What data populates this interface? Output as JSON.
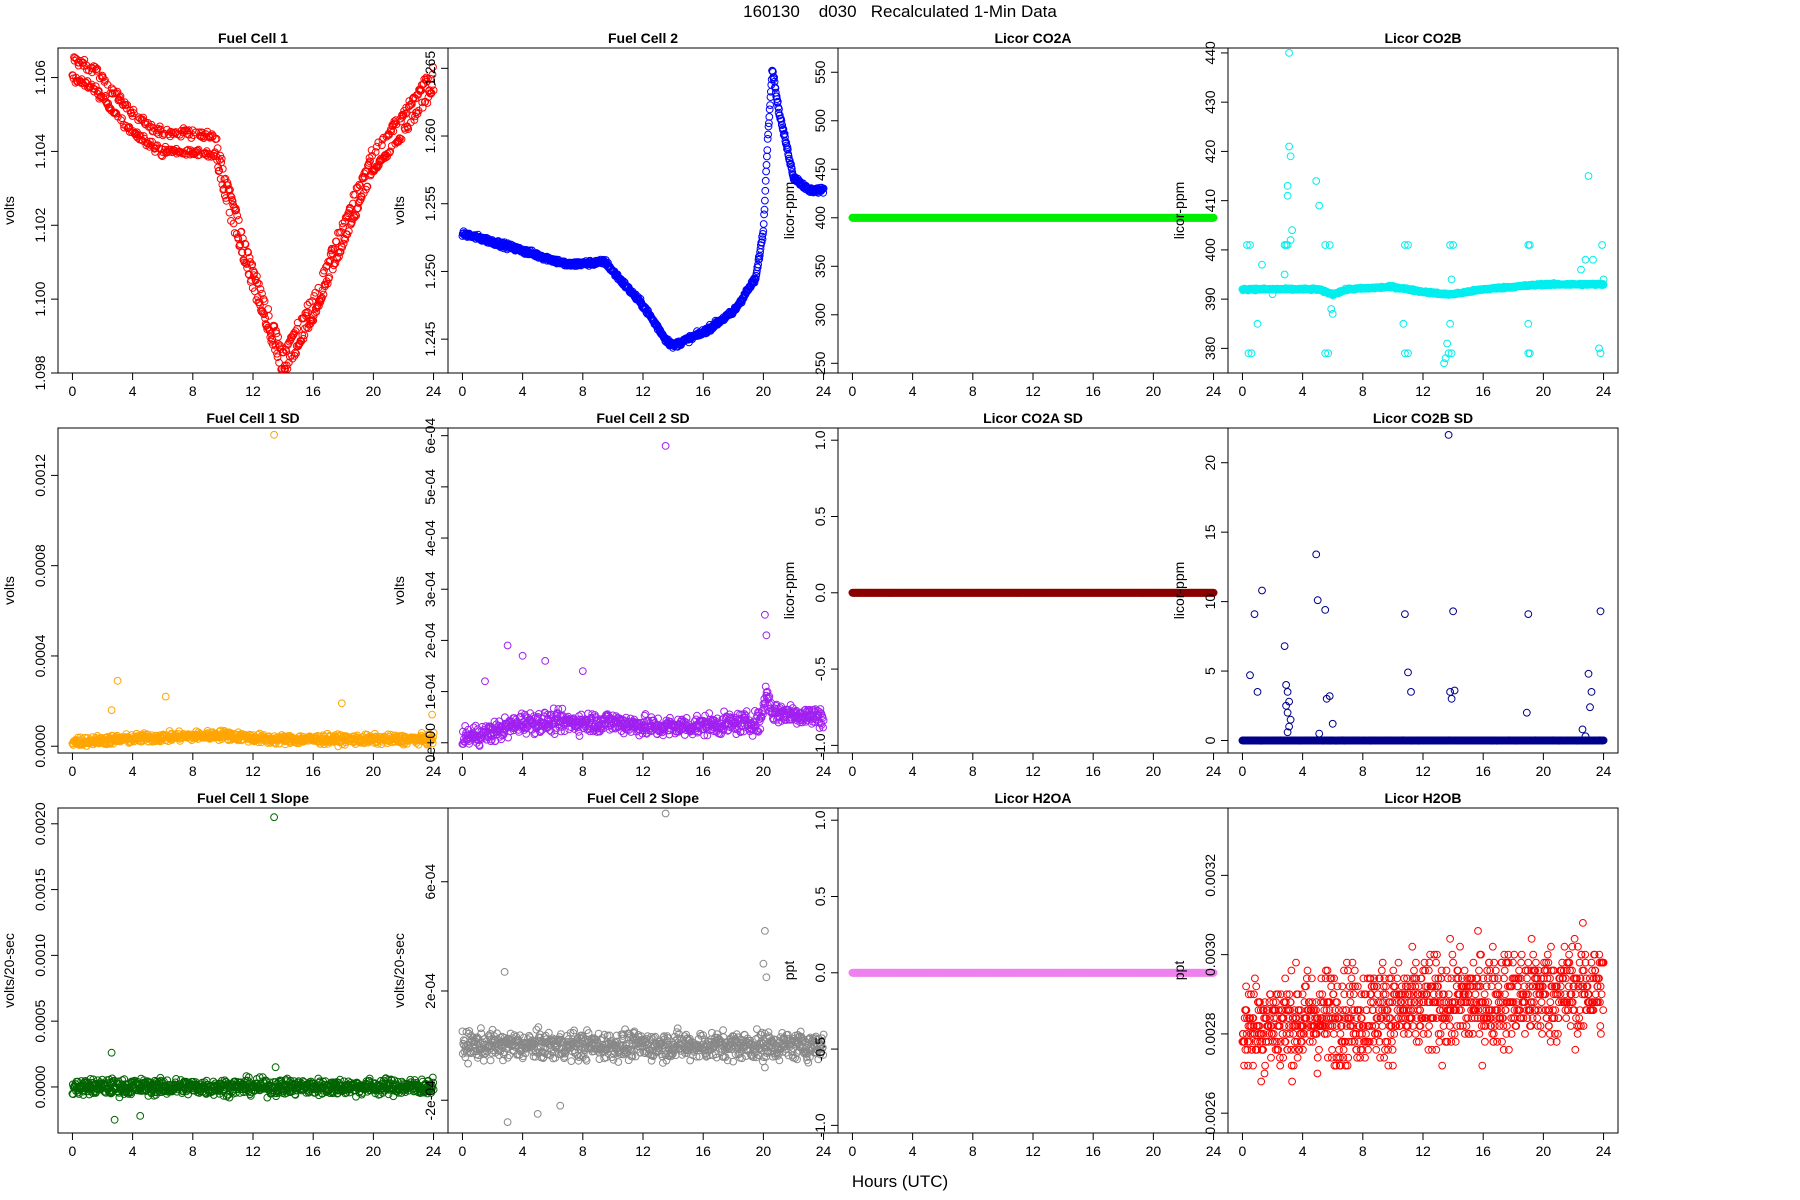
{
  "figure": {
    "title": "160130    d030   Recalculated 1-Min Data",
    "xlabel": "Hours (UTC)"
  },
  "chart_data": [
    {
      "type": "scatter",
      "title": "Fuel Cell 1",
      "ylabel": "volts",
      "color": "#ff0000",
      "xlim": [
        0,
        24
      ],
      "ylim": [
        1.098,
        1.1068
      ],
      "xticks": [
        0,
        4,
        8,
        12,
        16,
        20,
        24
      ],
      "yticks": [
        1.098,
        1.1,
        1.102,
        1.104,
        1.106
      ],
      "yticklabels": [
        "1.098",
        "1.100",
        "1.102",
        "1.104",
        "1.106"
      ],
      "trend": [
        [
          0,
          1.1065
        ],
        [
          1.5,
          1.1062
        ],
        [
          4,
          1.105
        ],
        [
          6,
          1.1045
        ],
        [
          8,
          1.1045
        ],
        [
          9.5,
          1.1044
        ],
        [
          10,
          1.1035
        ],
        [
          12,
          1.1008
        ],
        [
          13.2,
          1.0995
        ],
        [
          14,
          1.0985
        ],
        [
          16,
          1.1
        ],
        [
          18,
          1.102
        ],
        [
          20,
          1.104
        ],
        [
          22,
          1.105
        ],
        [
          24,
          1.1062
        ]
      ],
      "offset": 0.0005,
      "noise": 0.00012,
      "n": 700
    },
    {
      "type": "scatter",
      "title": "Fuel Cell 2",
      "ylabel": "volts",
      "color": "#0000ff",
      "xlim": [
        0,
        24
      ],
      "ylim": [
        1.2425,
        1.2665
      ],
      "xticks": [
        0,
        4,
        8,
        12,
        16,
        20,
        24
      ],
      "yticks": [
        1.245,
        1.25,
        1.255,
        1.26,
        1.265
      ],
      "yticklabels": [
        "1.245",
        "1.250",
        "1.255",
        "1.260",
        "1.265"
      ],
      "trend": [
        [
          0,
          1.2528
        ],
        [
          2,
          1.2522
        ],
        [
          5,
          1.2512
        ],
        [
          7,
          1.2505
        ],
        [
          9.5,
          1.2507
        ],
        [
          10,
          1.25
        ],
        [
          12,
          1.2475
        ],
        [
          13.5,
          1.245
        ],
        [
          14,
          1.2445
        ],
        [
          16,
          1.2455
        ],
        [
          18,
          1.247
        ],
        [
          19.5,
          1.2495
        ],
        [
          20,
          1.253
        ],
        [
          20.3,
          1.26
        ],
        [
          20.6,
          1.265
        ],
        [
          21,
          1.262
        ],
        [
          22,
          1.257
        ],
        [
          23,
          1.256
        ],
        [
          24,
          1.256
        ]
      ],
      "offset": 0,
      "noise": 0.0002,
      "n": 900
    },
    {
      "type": "scatter",
      "title": "Licor CO2A",
      "ylabel": "licor-ppm",
      "color": "#00ee00",
      "xlim": [
        0,
        24
      ],
      "ylim": [
        240,
        575
      ],
      "xticks": [
        0,
        4,
        8,
        12,
        16,
        20,
        24
      ],
      "yticks": [
        250,
        300,
        350,
        400,
        450,
        500,
        550
      ],
      "yticklabels": [
        "250",
        "300",
        "350",
        "400",
        "450",
        "500",
        "550"
      ],
      "trend": [
        [
          0,
          400
        ],
        [
          24,
          400
        ]
      ],
      "offset": 0,
      "noise": 0,
      "n": 900
    },
    {
      "type": "scatter",
      "title": "Licor CO2B",
      "ylabel": "licor-ppm",
      "color": "#00eeee",
      "xlim": [
        0,
        24
      ],
      "ylim": [
        375,
        441
      ],
      "xticks": [
        0,
        4,
        8,
        12,
        16,
        20,
        24
      ],
      "yticks": [
        380,
        390,
        400,
        410,
        420,
        430,
        440
      ],
      "yticklabels": [
        "380",
        "390",
        "400",
        "410",
        "420",
        "430",
        "440"
      ],
      "trend": [
        [
          0,
          392
        ],
        [
          5,
          392
        ],
        [
          6,
          391
        ],
        [
          7,
          392
        ],
        [
          10,
          392.5
        ],
        [
          12,
          391.5
        ],
        [
          13.5,
          391
        ],
        [
          14,
          391
        ],
        [
          16,
          392
        ],
        [
          20,
          393
        ],
        [
          24,
          393
        ]
      ],
      "offset": 0,
      "noise": 0.2,
      "n": 700,
      "extra": [
        [
          0.3,
          401
        ],
        [
          0.5,
          401
        ],
        [
          0.4,
          379
        ],
        [
          0.6,
          379
        ],
        [
          1.0,
          385
        ],
        [
          1.3,
          397
        ],
        [
          2.0,
          391
        ],
        [
          2.8,
          395
        ],
        [
          3.0,
          413
        ],
        [
          3.1,
          421
        ],
        [
          3.2,
          419
        ],
        [
          3.0,
          411
        ],
        [
          3.2,
          402
        ],
        [
          3.1,
          440
        ],
        [
          3.3,
          404
        ],
        [
          2.9,
          401
        ],
        [
          3.0,
          401
        ],
        [
          2.8,
          401
        ],
        [
          4.9,
          414
        ],
        [
          5.1,
          409
        ],
        [
          5.5,
          401
        ],
        [
          5.8,
          401
        ],
        [
          5.5,
          379
        ],
        [
          5.7,
          379
        ],
        [
          5.9,
          388
        ],
        [
          6.0,
          387
        ],
        [
          10.8,
          401
        ],
        [
          11.0,
          401
        ],
        [
          10.8,
          379
        ],
        [
          11.0,
          379
        ],
        [
          10.7,
          385
        ],
        [
          13.4,
          377
        ],
        [
          13.5,
          378
        ],
        [
          13.6,
          381
        ],
        [
          13.8,
          385
        ],
        [
          13.6,
          391
        ],
        [
          13.8,
          401
        ],
        [
          14.0,
          401
        ],
        [
          13.7,
          379
        ],
        [
          13.9,
          379
        ],
        [
          13.9,
          394
        ],
        [
          19.0,
          401
        ],
        [
          19.1,
          401
        ],
        [
          19.0,
          379
        ],
        [
          19.1,
          379
        ],
        [
          19.0,
          385
        ],
        [
          22.5,
          396
        ],
        [
          22.8,
          398
        ],
        [
          23.0,
          415
        ],
        [
          23.3,
          398
        ],
        [
          23.7,
          380
        ],
        [
          23.8,
          379
        ],
        [
          23.9,
          401
        ],
        [
          24.0,
          394
        ]
      ]
    },
    {
      "type": "scatter",
      "title": "Fuel Cell 1 SD",
      "ylabel": "volts",
      "color": "#ffa500",
      "xlim": [
        0,
        24
      ],
      "ylim": [
        -3e-05,
        0.00141
      ],
      "xticks": [
        0,
        4,
        8,
        12,
        16,
        20,
        24
      ],
      "yticks": [
        0,
        0.0004,
        0.0008,
        0.0012
      ],
      "yticklabels": [
        "0.0000",
        "0.0004",
        "0.0008",
        "0.0012"
      ],
      "trend": [
        [
          0,
          2e-05
        ],
        [
          6,
          4e-05
        ],
        [
          10,
          5e-05
        ],
        [
          13,
          3e-05
        ],
        [
          24,
          3e-05
        ]
      ],
      "offset": 0,
      "noise": 2e-05,
      "n": 800,
      "extra": [
        [
          13.4,
          0.00138
        ],
        [
          3.0,
          0.00029
        ],
        [
          6.2,
          0.00022
        ],
        [
          17.9,
          0.00019
        ],
        [
          2.6,
          0.00016
        ],
        [
          23.9,
          0.00014
        ]
      ]
    },
    {
      "type": "scatter",
      "title": "Fuel Cell 2 SD",
      "ylabel": "volts",
      "color": "#a020f0",
      "xlim": [
        0,
        24
      ],
      "ylim": [
        -2e-05,
        0.000615
      ],
      "xticks": [
        0,
        4,
        8,
        12,
        16,
        20,
        24
      ],
      "yticks": [
        0,
        0.0001,
        0.0002,
        0.0003,
        0.0004,
        0.0005,
        0.0006
      ],
      "yticklabels": [
        "0e+00",
        "1e-04",
        "2e-04",
        "3e-04",
        "4e-04",
        "5e-04",
        "6e-04"
      ],
      "trend": [
        [
          0,
          1e-05
        ],
        [
          2,
          2e-05
        ],
        [
          4,
          4e-05
        ],
        [
          10,
          4e-05
        ],
        [
          13,
          3e-05
        ],
        [
          19.8,
          4e-05
        ],
        [
          20.2,
          0.0001
        ],
        [
          20.6,
          6e-05
        ],
        [
          24,
          5e-05
        ]
      ],
      "offset": 0,
      "noise": 2e-05,
      "n": 800,
      "extra": [
        [
          13.5,
          0.00058
        ],
        [
          20.1,
          0.00025
        ],
        [
          20.2,
          0.00021
        ],
        [
          3.0,
          0.00019
        ],
        [
          4.0,
          0.00017
        ],
        [
          8.0,
          0.00014
        ],
        [
          5.5,
          0.00016
        ],
        [
          1.5,
          0.00012
        ]
      ]
    },
    {
      "type": "scatter",
      "title": "Licor CO2A SD",
      "ylabel": "licor-ppm",
      "color": "#8b0000",
      "xlim": [
        0,
        24
      ],
      "ylim": [
        -1.05,
        1.08
      ],
      "xticks": [
        0,
        4,
        8,
        12,
        16,
        20,
        24
      ],
      "yticks": [
        -1,
        -0.5,
        0,
        0.5,
        1
      ],
      "yticklabels": [
        "-1.0",
        "-0.5",
        "0.0",
        "0.5",
        "1.0"
      ],
      "trend": [
        [
          0,
          0
        ],
        [
          24,
          0
        ]
      ],
      "offset": 0,
      "noise": 0,
      "n": 900
    },
    {
      "type": "scatter",
      "title": "Licor CO2B SD",
      "ylabel": "licor-ppm",
      "color": "#00008b",
      "xlim": [
        0,
        24
      ],
      "ylim": [
        -0.9,
        22.5
      ],
      "xticks": [
        0,
        4,
        8,
        12,
        16,
        20,
        24
      ],
      "yticks": [
        0,
        5,
        10,
        15,
        20
      ],
      "yticklabels": [
        "0",
        "5",
        "10",
        "15",
        "20"
      ],
      "trend": [
        [
          0,
          0
        ],
        [
          24,
          0
        ]
      ],
      "offset": 0,
      "noise": 0.01,
      "n": 700,
      "extra": [
        [
          0.5,
          4.7
        ],
        [
          0.8,
          9.1
        ],
        [
          1.0,
          3.5
        ],
        [
          1.3,
          10.8
        ],
        [
          2.8,
          6.8
        ],
        [
          2.9,
          4.0
        ],
        [
          3.0,
          3.5
        ],
        [
          3.1,
          2.8
        ],
        [
          3.0,
          2.0
        ],
        [
          3.2,
          1.5
        ],
        [
          3.1,
          1.0
        ],
        [
          3.0,
          0.6
        ],
        [
          2.9,
          2.5
        ],
        [
          4.9,
          13.4
        ],
        [
          5.0,
          10.1
        ],
        [
          5.1,
          0.5
        ],
        [
          5.5,
          9.4
        ],
        [
          5.6,
          3.0
        ],
        [
          5.8,
          3.2
        ],
        [
          6.0,
          1.2
        ],
        [
          10.8,
          9.1
        ],
        [
          11.0,
          4.9
        ],
        [
          11.2,
          3.5
        ],
        [
          13.7,
          22.0
        ],
        [
          13.8,
          3.5
        ],
        [
          13.9,
          3.0
        ],
        [
          14.0,
          9.3
        ],
        [
          14.1,
          3.6
        ],
        [
          19.0,
          9.1
        ],
        [
          18.9,
          2.0
        ],
        [
          22.6,
          0.8
        ],
        [
          22.8,
          0.3
        ],
        [
          23.0,
          4.8
        ],
        [
          23.1,
          2.4
        ],
        [
          23.2,
          3.5
        ],
        [
          23.8,
          9.3
        ]
      ]
    },
    {
      "type": "scatter",
      "title": "Fuel Cell 1 Slope",
      "ylabel": "volts/20-sec",
      "color": "#006400",
      "xlim": [
        0,
        24
      ],
      "ylim": [
        -0.00035,
        0.00212
      ],
      "xticks": [
        0,
        4,
        8,
        12,
        16,
        20,
        24
      ],
      "yticks": [
        0,
        0.0005,
        0.001,
        0.0015,
        0.002
      ],
      "yticklabels": [
        "0.0000",
        "0.0005",
        "0.0010",
        "0.0015",
        "0.0020"
      ],
      "trend": [
        [
          0,
          0
        ],
        [
          24,
          0
        ]
      ],
      "offset": 0,
      "noise": 6e-05,
      "n": 900,
      "extra": [
        [
          13.4,
          0.00205
        ],
        [
          2.6,
          0.00026
        ],
        [
          13.5,
          0.00015
        ],
        [
          4.5,
          -0.00022
        ],
        [
          2.8,
          -0.00025
        ]
      ]
    },
    {
      "type": "scatter",
      "title": "Fuel Cell 2 Slope",
      "ylabel": "volts/20-sec",
      "color": "#888888",
      "xlim": [
        0,
        24
      ],
      "ylim": [
        -0.00032,
        0.00087
      ],
      "xticks": [
        0,
        4,
        8,
        12,
        16,
        20,
        24
      ],
      "yticks": [
        -0.0002,
        0.0002,
        0.0006
      ],
      "yticklabels": [
        "-2e-04",
        "2e-04",
        "6e-04"
      ],
      "trend": [
        [
          0,
          0
        ],
        [
          24,
          0
        ]
      ],
      "offset": 0,
      "noise": 5e-05,
      "n": 900,
      "extra": [
        [
          13.5,
          0.00085
        ],
        [
          20.1,
          0.00042
        ],
        [
          20.0,
          0.0003
        ],
        [
          20.2,
          0.00025
        ],
        [
          2.8,
          0.00027
        ],
        [
          3.0,
          -0.00028
        ],
        [
          5.0,
          -0.00025
        ],
        [
          6.5,
          -0.00022
        ],
        [
          20.1,
          -8e-05
        ]
      ]
    },
    {
      "type": "scatter",
      "title": "Licor H2OA",
      "ylabel": "ppt",
      "color": "#ee82ee",
      "xlim": [
        0,
        24
      ],
      "ylim": [
        -1.05,
        1.08
      ],
      "xticks": [
        0,
        4,
        8,
        12,
        16,
        20,
        24
      ],
      "yticks": [
        -1,
        -0.5,
        0,
        0.5,
        1
      ],
      "yticklabels": [
        "-1.0",
        "-0.5",
        "0.0",
        "0.5",
        "1.0"
      ],
      "trend": [
        [
          0,
          0
        ],
        [
          24,
          0
        ]
      ],
      "offset": 0,
      "noise": 0,
      "n": 900
    },
    {
      "type": "scatter",
      "title": "Licor H2OB",
      "ylabel": "ppt",
      "color": "#ff0000",
      "xlim": [
        0,
        24
      ],
      "ylim": [
        0.00255,
        0.00337
      ],
      "xticks": [
        0,
        4,
        8,
        12,
        16,
        20,
        24
      ],
      "yticks": [
        0.0026,
        0.0028,
        0.003,
        0.0032
      ],
      "yticklabels": [
        "0.0026",
        "0.0028",
        "0.0030",
        "0.0032"
      ],
      "trend": [
        [
          0,
          0.00282
        ],
        [
          24,
          0.00292
        ]
      ],
      "offset": 0,
      "noise": 0.00012,
      "n": 1100,
      "quantize": 2e-05
    }
  ]
}
